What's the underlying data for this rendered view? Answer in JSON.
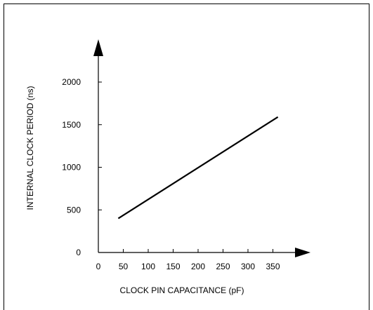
{
  "chart_data": {
    "type": "line",
    "xlabel": "CLOCK PIN CAPACITANCE (pF)",
    "ylabel": "INTERNAL CLOCK PERIOD (ns)",
    "x_ticks": [
      "0",
      "50",
      "100",
      "150",
      "200",
      "250",
      "300",
      "350"
    ],
    "y_ticks": [
      "0",
      "500",
      "1000",
      "1500",
      "2000"
    ],
    "xlim": [
      0,
      400
    ],
    "ylim": [
      0,
      2400
    ],
    "series": [
      {
        "x": [
          40,
          360
        ],
        "y": [
          400,
          1590
        ]
      }
    ],
    "grid": false,
    "colors": {
      "line": "#000000",
      "axes": "#000000",
      "frame": "#000000"
    }
  }
}
